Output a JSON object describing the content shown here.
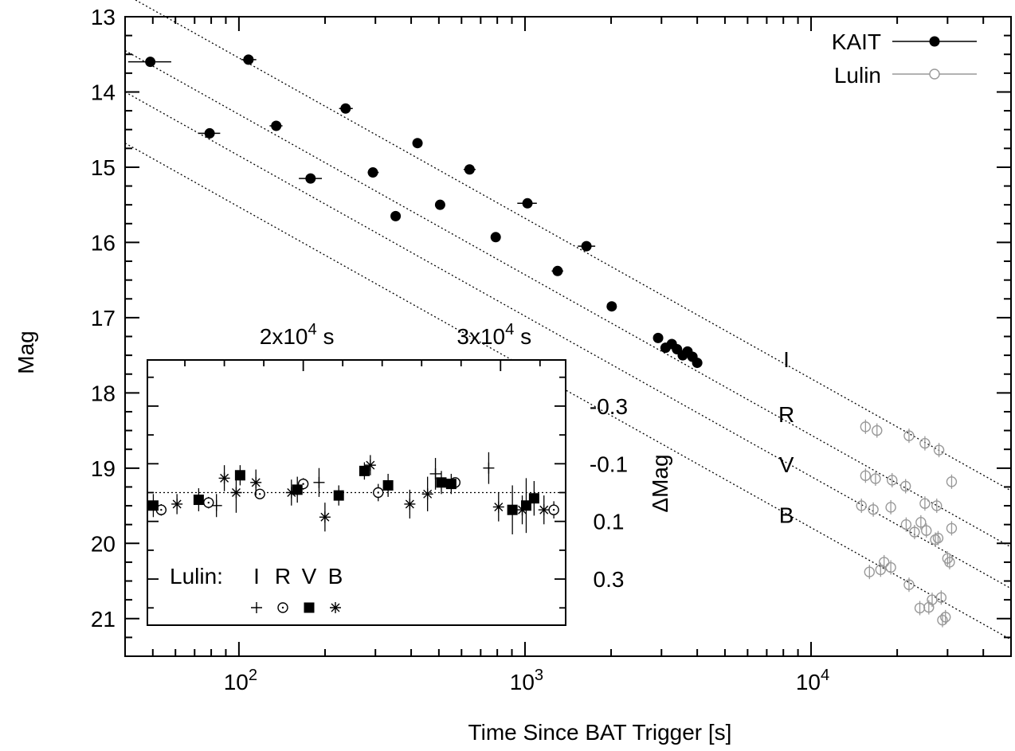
{
  "chart_data": [
    {
      "type": "scatter",
      "xlabel": "Time Since BAT Trigger [s]",
      "ylabel": "Mag",
      "xscale": "log",
      "xlim": [
        40,
        50000
      ],
      "ylim": [
        21.5,
        13
      ],
      "y_inverted": true,
      "x_ticks": [
        {
          "value": 100,
          "base": "10",
          "exp": "2"
        },
        {
          "value": 1000,
          "base": "10",
          "exp": "3"
        },
        {
          "value": 10000,
          "base": "10",
          "exp": "4"
        }
      ],
      "y_ticks": [
        "13",
        "14",
        "15",
        "16",
        "17",
        "18",
        "19",
        "20",
        "21"
      ],
      "legend": {
        "placement": "top-right",
        "entries": [
          {
            "label": "KAIT",
            "marker": "filled-circle",
            "color": "#000000"
          },
          {
            "label": "Lulin",
            "marker": "open-circle",
            "color": "#999999"
          }
        ]
      },
      "band_labels": [
        {
          "label": "I",
          "x": 8200,
          "y": 17.55
        },
        {
          "label": "R",
          "x": 8200,
          "y": 18.28
        },
        {
          "label": "V",
          "x": 8200,
          "y": 18.95
        },
        {
          "label": "B",
          "x": 8200,
          "y": 19.62
        }
      ],
      "fit_lines": [
        {
          "band": "I",
          "x": [
            40,
            50000
          ],
          "y": [
            12.7,
            19.3
          ]
        },
        {
          "band": "R",
          "x": [
            40,
            50000
          ],
          "y": [
            13.45,
            20.05
          ]
        },
        {
          "band": "V",
          "x": [
            40,
            50000
          ],
          "y": [
            14.0,
            20.6
          ]
        },
        {
          "band": "B",
          "x": [
            40,
            50000
          ],
          "y": [
            14.68,
            21.28
          ]
        }
      ],
      "series": [
        {
          "name": "KAIT",
          "points": [
            {
              "x": 49,
              "y": 13.6,
              "xerr": [
                41,
                58
              ]
            },
            {
              "x": 79,
              "y": 14.55,
              "xerr": [
                72,
                86
              ]
            },
            {
              "x": 108,
              "y": 13.57,
              "xerr": [
                102,
                115
              ]
            },
            {
              "x": 135,
              "y": 14.45,
              "xerr": [
                128,
                142
              ]
            },
            {
              "x": 178,
              "y": 15.15,
              "xerr": [
                162,
                195
              ]
            },
            {
              "x": 236,
              "y": 14.22,
              "xerr": [
                224,
                250
              ]
            },
            {
              "x": 294,
              "y": 15.07,
              "xerr": [
                282,
                308
              ]
            },
            {
              "x": 353,
              "y": 15.65,
              "xerr": [
                340,
                365
              ]
            },
            {
              "x": 421,
              "y": 14.68,
              "xerr": [
                410,
                432
              ]
            },
            {
              "x": 505,
              "y": 15.5,
              "xerr": [
                490,
                520
              ]
            },
            {
              "x": 640,
              "y": 15.03,
              "xerr": [
                610,
                672
              ]
            },
            {
              "x": 790,
              "y": 15.93,
              "xerr": [
                770,
                812
              ]
            },
            {
              "x": 1020,
              "y": 15.48,
              "xerr": [
                940,
                1100
              ]
            },
            {
              "x": 1300,
              "y": 16.38,
              "xerr": [
                1240,
                1360
              ]
            },
            {
              "x": 1640,
              "y": 16.05,
              "xerr": [
                1530,
                1760
              ]
            },
            {
              "x": 2010,
              "y": 16.85,
              "xerr": [
                1940,
                2090
              ]
            },
            {
              "x": 2920,
              "y": 17.27
            },
            {
              "x": 3100,
              "y": 17.4
            },
            {
              "x": 3260,
              "y": 17.35
            },
            {
              "x": 3400,
              "y": 17.42
            },
            {
              "x": 3560,
              "y": 17.5
            },
            {
              "x": 3700,
              "y": 17.45
            },
            {
              "x": 3850,
              "y": 17.52
            },
            {
              "x": 4000,
              "y": 17.6
            }
          ]
        },
        {
          "name": "Lulin",
          "points": [
            {
              "x": 15500,
              "y": 18.45
            },
            {
              "x": 17000,
              "y": 18.5
            },
            {
              "x": 22000,
              "y": 18.57
            },
            {
              "x": 25000,
              "y": 18.67
            },
            {
              "x": 28000,
              "y": 18.76
            },
            {
              "x": 15500,
              "y": 19.1
            },
            {
              "x": 16800,
              "y": 19.14
            },
            {
              "x": 19200,
              "y": 19.16
            },
            {
              "x": 21400,
              "y": 19.24
            },
            {
              "x": 25000,
              "y": 19.47
            },
            {
              "x": 27500,
              "y": 19.5
            },
            {
              "x": 31000,
              "y": 19.18
            },
            {
              "x": 15000,
              "y": 19.5
            },
            {
              "x": 16500,
              "y": 19.55
            },
            {
              "x": 19000,
              "y": 19.52
            },
            {
              "x": 21500,
              "y": 19.75
            },
            {
              "x": 23000,
              "y": 19.85
            },
            {
              "x": 24200,
              "y": 19.72
            },
            {
              "x": 25300,
              "y": 19.83
            },
            {
              "x": 27200,
              "y": 19.95
            },
            {
              "x": 27800,
              "y": 19.93
            },
            {
              "x": 30000,
              "y": 20.2
            },
            {
              "x": 31000,
              "y": 19.8
            },
            {
              "x": 16000,
              "y": 20.38
            },
            {
              "x": 17500,
              "y": 20.35
            },
            {
              "x": 18000,
              "y": 20.25
            },
            {
              "x": 19000,
              "y": 20.32
            },
            {
              "x": 22000,
              "y": 20.55
            },
            {
              "x": 24000,
              "y": 20.86
            },
            {
              "x": 25800,
              "y": 20.85
            },
            {
              "x": 26500,
              "y": 20.75
            },
            {
              "x": 28500,
              "y": 20.72
            },
            {
              "x": 28800,
              "y": 21.02
            },
            {
              "x": 29500,
              "y": 20.98
            },
            {
              "x": 30500,
              "y": 20.25
            }
          ]
        }
      ]
    },
    {
      "type": "scatter",
      "inset": true,
      "ylabel": "ΔMag",
      "xlim": [
        12100,
        33300
      ],
      "ylim": [
        -0.46,
        0.46
      ],
      "y_inverted": true,
      "x_ticks": [
        {
          "value": 20000,
          "label": "2x10",
          "exp": "4",
          "unit": " s"
        },
        {
          "value": 30000,
          "label": "3x10",
          "exp": "4",
          "unit": " s"
        }
      ],
      "y_ticks": [
        {
          "value": -0.3,
          "label": "-0.3"
        },
        {
          "value": -0.1,
          "label": "-0.1"
        },
        {
          "value": 0.1,
          "label": "0.1"
        },
        {
          "value": 0.3,
          "label": "0.3"
        }
      ],
      "zero_line": 0,
      "legend": {
        "prefix": "Lulin:",
        "entries": [
          {
            "label": "I",
            "marker": "plus"
          },
          {
            "label": "R",
            "marker": "open-circle"
          },
          {
            "label": "V",
            "marker": "filled-square"
          },
          {
            "label": "B",
            "marker": "asterisk"
          }
        ]
      },
      "series": [
        {
          "name": "I",
          "marker": "plus",
          "points": [
            {
              "x": 15600,
              "y": 0.045,
              "err": 0.04
            },
            {
              "x": 20800,
              "y": -0.035,
              "err": 0.05
            },
            {
              "x": 26700,
              "y": -0.065,
              "err": 0.055
            },
            {
              "x": 29400,
              "y": -0.085,
              "err": 0.055
            }
          ]
        },
        {
          "name": "R",
          "marker": "open-circle",
          "points": [
            {
              "x": 12800,
              "y": 0.06,
              "err": 0.02
            },
            {
              "x": 15200,
              "y": 0.035,
              "err": 0.02
            },
            {
              "x": 17800,
              "y": 0.005,
              "err": 0.015
            },
            {
              "x": 20000,
              "y": -0.03,
              "err": 0.02
            },
            {
              "x": 23800,
              "y": 0.0,
              "err": 0.03
            },
            {
              "x": 27700,
              "y": -0.035,
              "err": 0.015
            },
            {
              "x": 32700,
              "y": 0.06,
              "err": 0.03
            }
          ]
        },
        {
          "name": "V",
          "marker": "filled-square",
          "points": [
            {
              "x": 12400,
              "y": 0.045,
              "err": 0.04
            },
            {
              "x": 14700,
              "y": 0.025,
              "err": 0.04
            },
            {
              "x": 16800,
              "y": -0.06,
              "err": 0.035
            },
            {
              "x": 19700,
              "y": -0.01,
              "err": 0.045
            },
            {
              "x": 21800,
              "y": 0.01,
              "err": 0.035
            },
            {
              "x": 23100,
              "y": -0.075,
              "err": 0.03
            },
            {
              "x": 24300,
              "y": -0.025,
              "err": 0.04
            },
            {
              "x": 27000,
              "y": -0.035,
              "err": 0.04
            },
            {
              "x": 27500,
              "y": -0.03,
              "err": 0.035
            },
            {
              "x": 30600,
              "y": 0.06,
              "err": 0.085
            },
            {
              "x": 31300,
              "y": 0.045,
              "err": 0.095
            },
            {
              "x": 31700,
              "y": 0.02,
              "err": 0.06
            }
          ]
        },
        {
          "name": "B",
          "marker": "asterisk",
          "points": [
            {
              "x": 13600,
              "y": 0.04,
              "err": 0.035
            },
            {
              "x": 16000,
              "y": -0.05,
              "err": 0.045
            },
            {
              "x": 16600,
              "y": 0.0,
              "err": 0.07
            },
            {
              "x": 17600,
              "y": -0.035,
              "err": 0.045
            },
            {
              "x": 19400,
              "y": 0.0,
              "err": 0.045
            },
            {
              "x": 21100,
              "y": 0.085,
              "err": 0.05
            },
            {
              "x": 23400,
              "y": -0.095,
              "err": 0.035
            },
            {
              "x": 25400,
              "y": 0.04,
              "err": 0.05
            },
            {
              "x": 26300,
              "y": 0.005,
              "err": 0.06
            },
            {
              "x": 29900,
              "y": 0.05,
              "err": 0.05
            },
            {
              "x": 31100,
              "y": 0.06,
              "err": 0.05
            },
            {
              "x": 32200,
              "y": 0.06,
              "err": 0.05
            }
          ]
        }
      ]
    }
  ]
}
